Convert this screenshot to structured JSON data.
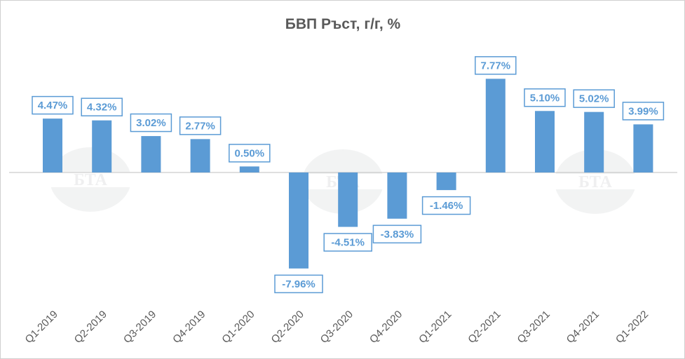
{
  "chart_data": {
    "type": "bar",
    "title": "БВП Ръст, г/г, %",
    "categories": [
      "Q1-2019",
      "Q2-2019",
      "Q3-2019",
      "Q4-2019",
      "Q1-2020",
      "Q2-2020",
      "Q3-2020",
      "Q4-2020",
      "Q1-2021",
      "Q2-2021",
      "Q3-2021",
      "Q4-2021",
      "Q1-2022"
    ],
    "values": [
      4.47,
      4.32,
      3.02,
      2.77,
      0.5,
      -7.96,
      -4.51,
      -3.83,
      -1.46,
      7.77,
      5.1,
      5.02,
      3.99
    ],
    "data_labels": [
      "4.47%",
      "4.32%",
      "3.02%",
      "2.77%",
      "0.50%",
      "-7.96%",
      "-4.51%",
      "-3.83%",
      "-1.46%",
      "7.77%",
      "5.10%",
      "5.02%",
      "3.99%"
    ],
    "xlabel": "",
    "ylabel": "",
    "ylim": [
      -10,
      10
    ],
    "grid": false,
    "legend": "none",
    "bar_color": "#5b9bd5",
    "axis_color": "#bfbfbf",
    "watermark": "БТА"
  }
}
